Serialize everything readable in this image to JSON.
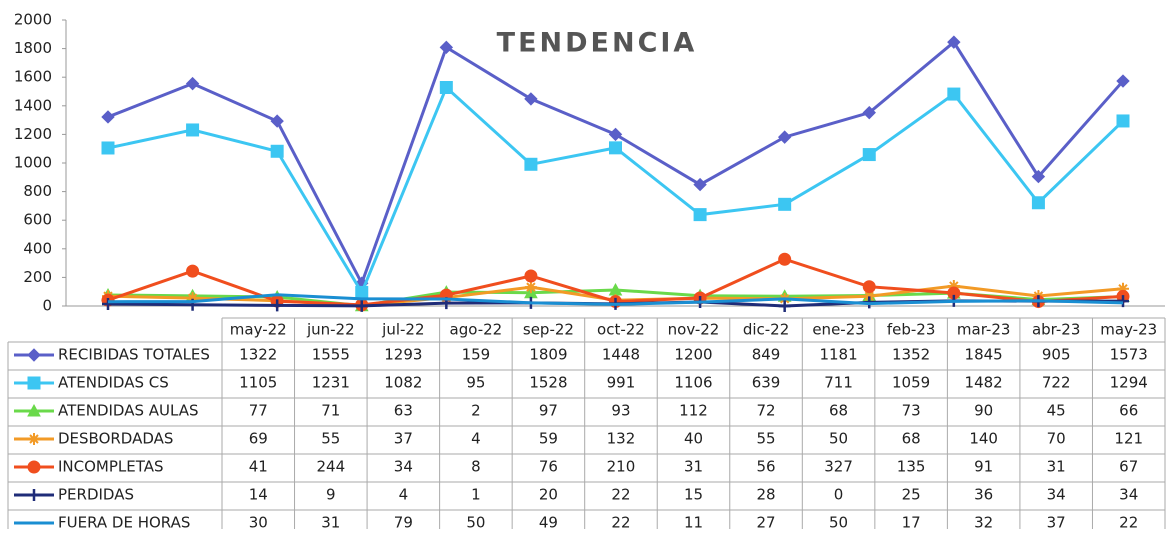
{
  "chart_data": {
    "type": "line",
    "title": "TENDENCIA",
    "categories": [
      "may-22",
      "jun-22",
      "jul-22",
      "ago-22",
      "sep-22",
      "oct-22",
      "nov-22",
      "dic-22",
      "ene-23",
      "feb-23",
      "mar-23",
      "abr-23",
      "may-23"
    ],
    "ylim": [
      0,
      2000
    ],
    "yticks": [
      0,
      200,
      400,
      600,
      800,
      1000,
      1200,
      1400,
      1600,
      1800,
      2000
    ],
    "grid": false,
    "series": [
      {
        "name": "RECIBIDAS TOTALES",
        "color": "#5a5fc8",
        "marker": "diamond",
        "values": [
          1322,
          1555,
          1293,
          159,
          1809,
          1448,
          1200,
          849,
          1181,
          1352,
          1845,
          905,
          1573
        ]
      },
      {
        "name": "ATENDIDAS CS",
        "color": "#3cc6f2",
        "marker": "square",
        "values": [
          1105,
          1231,
          1082,
          95,
          1528,
          991,
          1106,
          639,
          711,
          1059,
          1482,
          722,
          1294
        ]
      },
      {
        "name": "ATENDIDAS AULAS",
        "color": "#6ad94a",
        "marker": "triangle",
        "values": [
          77,
          71,
          63,
          2,
          97,
          93,
          112,
          72,
          68,
          73,
          90,
          45,
          66
        ]
      },
      {
        "name": "DESBORDADAS",
        "color": "#f29a26",
        "marker": "asterisk",
        "values": [
          69,
          55,
          37,
          4,
          59,
          132,
          40,
          55,
          50,
          68,
          140,
          70,
          121
        ]
      },
      {
        "name": "INCOMPLETAS",
        "color": "#f04e1e",
        "marker": "circle",
        "values": [
          41,
          244,
          34,
          8,
          76,
          210,
          31,
          56,
          327,
          135,
          91,
          31,
          67
        ]
      },
      {
        "name": "PERDIDAS",
        "color": "#1f2c78",
        "marker": "plus",
        "values": [
          14,
          9,
          4,
          1,
          20,
          22,
          15,
          28,
          0,
          25,
          36,
          34,
          34
        ]
      },
      {
        "name": "FUERA DE HORAS",
        "color": "#1a8ed2",
        "marker": "none",
        "values": [
          30,
          31,
          79,
          50,
          49,
          22,
          11,
          27,
          50,
          17,
          32,
          37,
          22
        ]
      }
    ]
  }
}
